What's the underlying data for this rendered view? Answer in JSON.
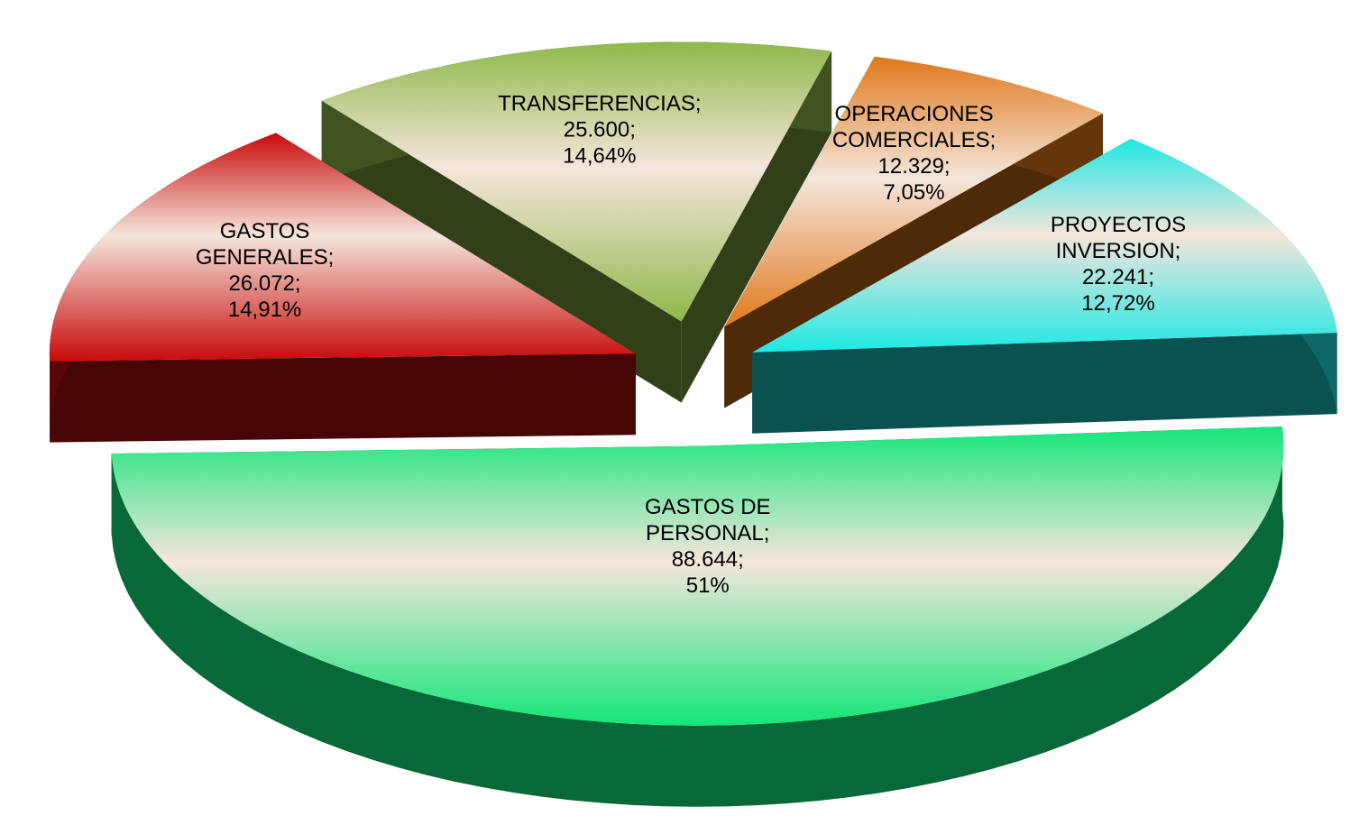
{
  "chart_data": {
    "type": "pie3d",
    "categories": [
      "GASTOS DE PERSONAL;",
      "GASTOS GENERALES;",
      "TRANSFERENCIAS;",
      "OPERACIONES COMERCIALES;",
      "PROYECTOS INVERSION;"
    ],
    "values": [
      88644,
      26072,
      25600,
      12329,
      22241
    ],
    "value_labels": [
      "88.644;",
      "26.072;",
      "25.600;",
      "12.329;",
      "22.241;"
    ],
    "percentages": [
      51,
      14.91,
      14.64,
      7.05,
      12.72
    ],
    "percentage_labels": [
      "51%",
      "14,91%",
      "14,64%",
      "7,05%",
      "12,72%"
    ],
    "colors": [
      "#14e67a",
      "#c80a0a",
      "#8fb84a",
      "#e0781a",
      "#1ee8e4"
    ]
  }
}
